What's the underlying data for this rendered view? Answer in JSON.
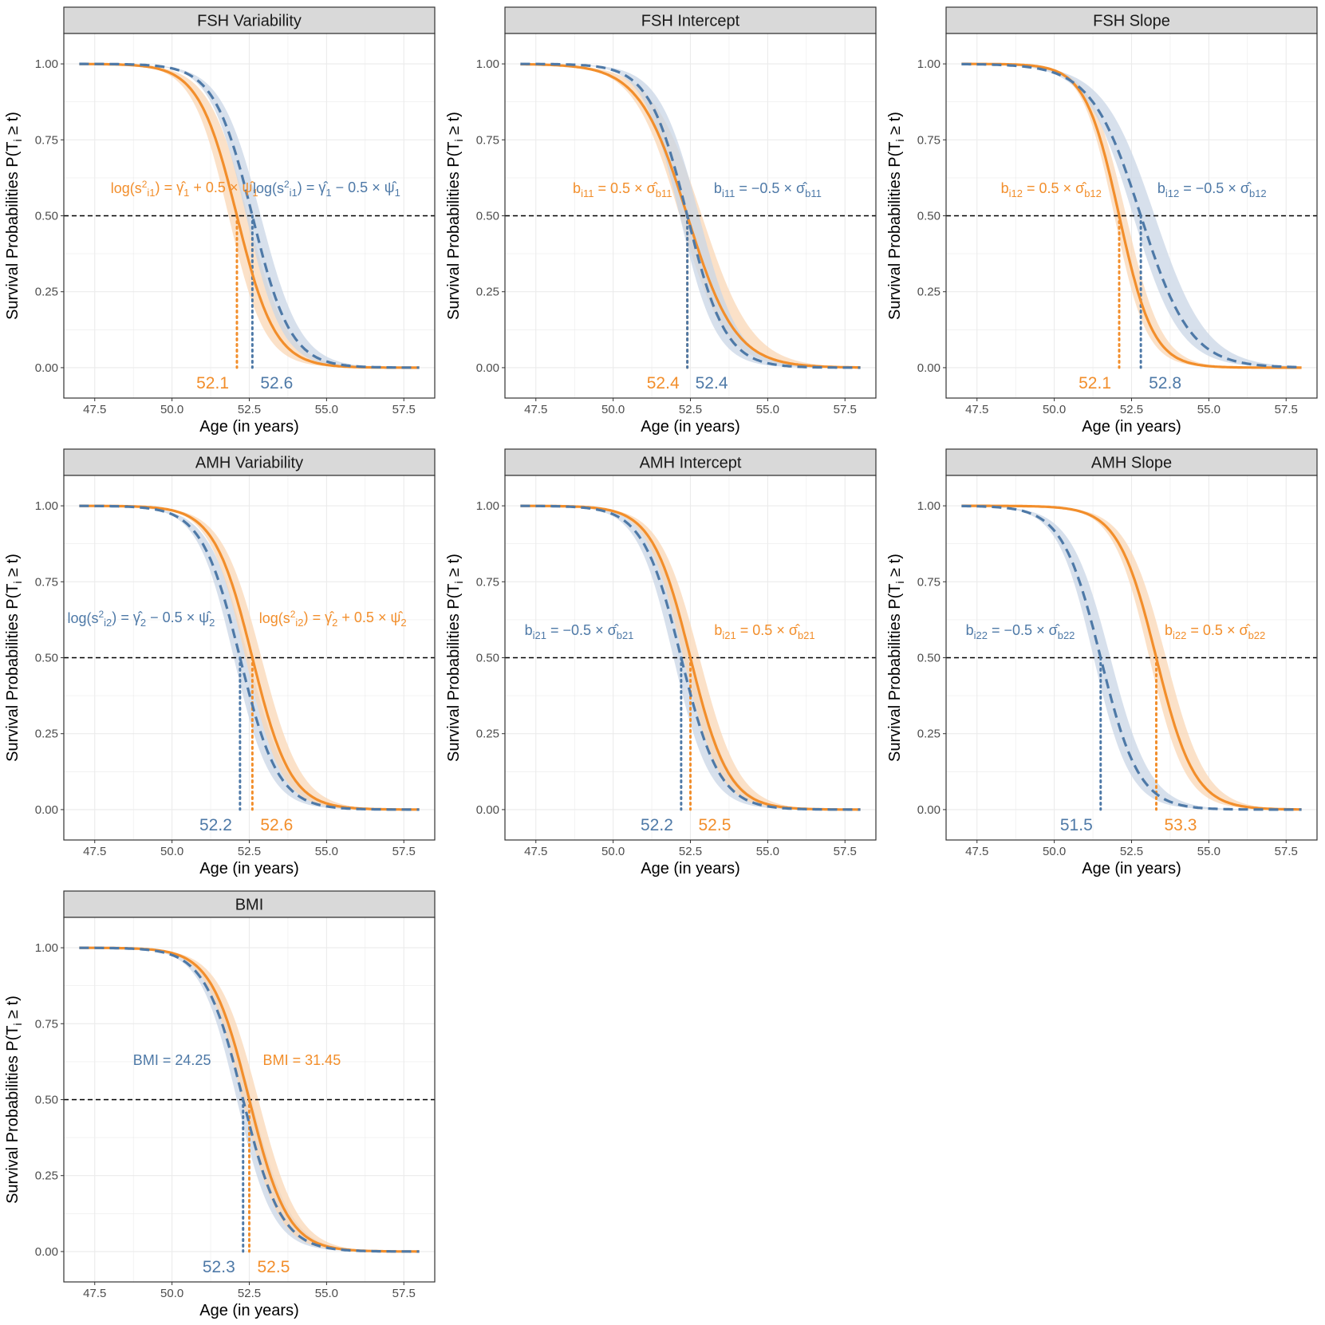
{
  "colors": {
    "orange": "#F28E2B",
    "blue": "#4E79A7",
    "orange_band": "#FAD7B5",
    "blue_band": "#C9D6E6",
    "grid": "#EBEBEB",
    "strip_fill": "#D9D9D9",
    "panel_border": "#333333"
  },
  "chart_data": [
    {
      "type": "line",
      "title": "FSH Variability",
      "xlabel": "Age (in years)",
      "ylabel": "Survival Probabilities  P(T_i ≥ t)",
      "xlim": [
        46.5,
        58.5
      ],
      "ylim": [
        -0.1,
        1.1
      ],
      "xticks": [
        "47.5",
        "50.0",
        "52.5",
        "55.0",
        "57.5"
      ],
      "yticks": [
        "0.00",
        "0.25",
        "0.50",
        "0.75",
        "1.00"
      ],
      "reference_line_y": 0.5,
      "x_range": [
        47,
        58
      ],
      "series": [
        {
          "name": "log(s²_i1) = γ̂1 + 0.5 × ψ̂1",
          "color": "orange",
          "style": "solid",
          "median": 52.1,
          "median_label": "52.1",
          "band": [
            0.6,
            0.8
          ]
        },
        {
          "name": "log(s²_i1) = γ̂1 − 0.5 × ψ̂1",
          "color": "blue",
          "style": "dashed",
          "median": 52.6,
          "median_label": "52.6",
          "band": [
            0.45,
            0.6
          ]
        }
      ],
      "annotations": [
        {
          "text": "log(s²i1) = γ̂1 + 0.5 × ψ̂1",
          "color": "orange",
          "x": 50.4,
          "y": 0.59
        },
        {
          "text": "log(s²i1) = γ̂1 − 0.5 × ψ̂1",
          "color": "blue",
          "x": 55.0,
          "y": 0.59
        }
      ]
    },
    {
      "type": "line",
      "title": "FSH Intercept",
      "xlabel": "Age (in years)",
      "ylabel": "Survival Probabilities  P(T_i ≥ t)",
      "xlim": [
        46.5,
        58.5
      ],
      "ylim": [
        -0.1,
        1.1
      ],
      "xticks": [
        "47.5",
        "50.0",
        "52.5",
        "55.0",
        "57.5"
      ],
      "yticks": [
        "0.00",
        "0.25",
        "0.50",
        "0.75",
        "1.00"
      ],
      "reference_line_y": 0.5,
      "x_range": [
        47,
        58
      ],
      "series": [
        {
          "name": "bi11 = 0.5 × σ̂b11",
          "color": "orange",
          "style": "solid",
          "median": 52.4,
          "median_label": "52.4",
          "band": [
            0.55,
            1.05
          ],
          "scale": 0.78
        },
        {
          "name": "bi11 = −0.5 × σ̂b11",
          "color": "blue",
          "style": "dashed",
          "median": 52.4,
          "median_label": "52.4",
          "band": [
            0.55,
            0.85
          ],
          "scale": 0.62
        }
      ],
      "annotations": [
        {
          "text": "bi11 = 0.5 × σ̂b11",
          "color": "orange",
          "x": 50.3,
          "y": 0.59
        },
        {
          "text": "bi11 = −0.5 × σ̂b11",
          "color": "blue",
          "x": 55.0,
          "y": 0.59
        }
      ]
    },
    {
      "type": "line",
      "title": "FSH Slope",
      "xlabel": "Age (in years)",
      "ylabel": "Survival Probabilities  P(T_i ≥ t)",
      "xlim": [
        46.5,
        58.5
      ],
      "ylim": [
        -0.1,
        1.1
      ],
      "xticks": [
        "47.5",
        "50.0",
        "52.5",
        "55.0",
        "57.5"
      ],
      "yticks": [
        "0.00",
        "0.25",
        "0.50",
        "0.75",
        "1.00"
      ],
      "reference_line_y": 0.5,
      "x_range": [
        47,
        58
      ],
      "series": [
        {
          "name": "bi12 = 0.5 × σ̂b12",
          "color": "orange",
          "style": "solid",
          "median": 52.1,
          "median_label": "52.1",
          "band": [
            0.35,
            0.5
          ],
          "scale": 0.55
        },
        {
          "name": "bi12 = −0.5 × σ̂b12",
          "color": "blue",
          "style": "dashed",
          "median": 52.8,
          "median_label": "52.8",
          "band": [
            0.55,
            1.0
          ],
          "scale": 0.8
        }
      ],
      "annotations": [
        {
          "text": "bi12 = 0.5 × σ̂b12",
          "color": "orange",
          "x": 49.9,
          "y": 0.59
        },
        {
          "text": "bi12 = −0.5 × σ̂b12",
          "color": "blue",
          "x": 55.1,
          "y": 0.59
        }
      ]
    },
    {
      "type": "line",
      "title": "AMH Variability",
      "xlabel": "Age (in years)",
      "ylabel": "Survival Probabilities  P(T_i ≥ t)",
      "xlim": [
        46.5,
        58.5
      ],
      "ylim": [
        -0.1,
        1.1
      ],
      "xticks": [
        "47.5",
        "50.0",
        "52.5",
        "55.0",
        "57.5"
      ],
      "yticks": [
        "0.00",
        "0.25",
        "0.50",
        "0.75",
        "1.00"
      ],
      "reference_line_y": 0.5,
      "x_range": [
        47,
        58
      ],
      "series": [
        {
          "name": "log(s²_i2) = γ̂2 − 0.5 × ψ̂2",
          "color": "blue",
          "style": "dashed",
          "median": 52.2,
          "median_label": "52.2",
          "band": [
            0.45,
            0.6
          ]
        },
        {
          "name": "log(s²_i2) = γ̂2 + 0.5 × ψ̂2",
          "color": "orange",
          "style": "solid",
          "median": 52.6,
          "median_label": "52.6",
          "band": [
            0.5,
            0.65
          ]
        }
      ],
      "annotations": [
        {
          "text": "log(s²i2) = γ̂2 − 0.5 × ψ̂2",
          "color": "blue",
          "x": 49.0,
          "y": 0.63
        },
        {
          "text": "log(s²i2) = γ̂2 + 0.5 × ψ̂2",
          "color": "orange",
          "x": 55.2,
          "y": 0.63
        }
      ]
    },
    {
      "type": "line",
      "title": "AMH Intercept",
      "xlabel": "Age (in years)",
      "ylabel": "Survival Probabilities  P(T_i ≥ t)",
      "xlim": [
        46.5,
        58.5
      ],
      "ylim": [
        -0.1,
        1.1
      ],
      "xticks": [
        "47.5",
        "50.0",
        "52.5",
        "55.0",
        "57.5"
      ],
      "yticks": [
        "0.00",
        "0.25",
        "0.50",
        "0.75",
        "1.00"
      ],
      "reference_line_y": 0.5,
      "x_range": [
        47,
        58
      ],
      "series": [
        {
          "name": "bi21 = −0.5 × σ̂b21",
          "color": "blue",
          "style": "dashed",
          "median": 52.2,
          "median_label": "52.2",
          "band": [
            0.55,
            0.7
          ]
        },
        {
          "name": "bi21 = 0.5 × σ̂b21",
          "color": "orange",
          "style": "solid",
          "median": 52.5,
          "median_label": "52.5",
          "band": [
            0.5,
            0.65
          ]
        }
      ],
      "annotations": [
        {
          "text": "bi21 = −0.5 × σ̂b21",
          "color": "blue",
          "x": 48.9,
          "y": 0.59
        },
        {
          "text": "bi21 = 0.5 × σ̂b21",
          "color": "orange",
          "x": 54.9,
          "y": 0.59
        }
      ]
    },
    {
      "type": "line",
      "title": "AMH Slope",
      "xlabel": "Age (in years)",
      "ylabel": "Survival Probabilities  P(T_i ≥ t)",
      "xlim": [
        46.5,
        58.5
      ],
      "ylim": [
        -0.1,
        1.1
      ],
      "xticks": [
        "47.5",
        "50.0",
        "52.5",
        "55.0",
        "57.5"
      ],
      "yticks": [
        "0.00",
        "0.25",
        "0.50",
        "0.75",
        "1.00"
      ],
      "reference_line_y": 0.5,
      "x_range": [
        47,
        58
      ],
      "series": [
        {
          "name": "bi22 = −0.5 × σ̂b22",
          "color": "blue",
          "style": "dashed",
          "median": 51.5,
          "median_label": "51.5",
          "band": [
            0.5,
            0.7
          ]
        },
        {
          "name": "bi22 = 0.5 × σ̂b22",
          "color": "orange",
          "style": "solid",
          "median": 53.3,
          "median_label": "53.3",
          "band": [
            0.5,
            0.7
          ]
        }
      ],
      "annotations": [
        {
          "text": "bi22 = −0.5 × σ̂b22",
          "color": "blue",
          "x": 48.9,
          "y": 0.59
        },
        {
          "text": "bi22 = 0.5 × σ̂b22",
          "color": "orange",
          "x": 55.2,
          "y": 0.59
        }
      ]
    },
    {
      "type": "line",
      "title": "BMI",
      "xlabel": "Age (in years)",
      "ylabel": "Survival Probabilities  P(T_i ≥ t)",
      "xlim": [
        46.5,
        58.5
      ],
      "ylim": [
        -0.1,
        1.1
      ],
      "xticks": [
        "47.5",
        "50.0",
        "52.5",
        "55.0",
        "57.5"
      ],
      "yticks": [
        "0.00",
        "0.25",
        "0.50",
        "0.75",
        "1.00"
      ],
      "reference_line_y": 0.5,
      "x_range": [
        47,
        58
      ],
      "series": [
        {
          "name": "BMI = 24.25",
          "color": "blue",
          "style": "dashed",
          "median": 52.3,
          "median_label": "52.3",
          "band": [
            0.45,
            0.6
          ]
        },
        {
          "name": "BMI = 31.45",
          "color": "orange",
          "style": "solid",
          "median": 52.5,
          "median_label": "52.5",
          "band": [
            0.5,
            0.65
          ]
        }
      ],
      "annotations": [
        {
          "text": "BMI = 24.25",
          "color": "blue",
          "x": 50.0,
          "y": 0.63
        },
        {
          "text": "BMI = 31.45",
          "color": "orange",
          "x": 54.2,
          "y": 0.63
        }
      ]
    }
  ]
}
